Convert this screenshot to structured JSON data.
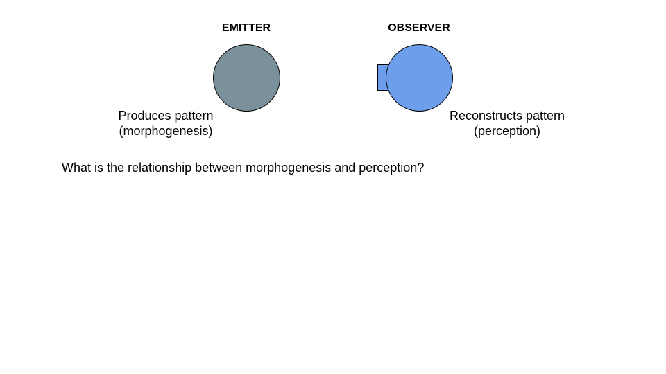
{
  "emitter": {
    "title": "EMITTER",
    "caption_line1": "Produces pattern",
    "caption_line2": "(morphogenesis)",
    "fill_color": "#7a909b"
  },
  "observer": {
    "title": "OBSERVER",
    "caption_line1": "Reconstructs pattern",
    "caption_line2": "(perception)",
    "fill_color": "#6d9eeb"
  },
  "question": "What is the relationship between morphogenesis and perception?"
}
